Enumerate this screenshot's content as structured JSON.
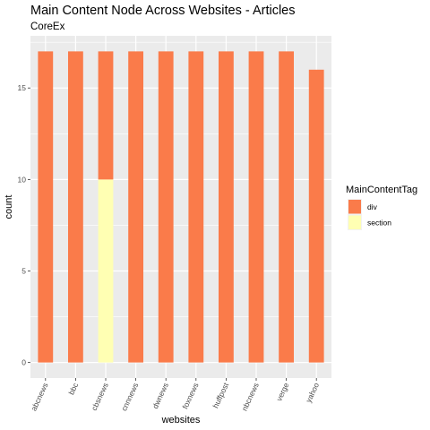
{
  "chart_data": {
    "type": "bar",
    "stacked": true,
    "title": "Main Content Node Across Websites - Articles",
    "subtitle": "CoreEx",
    "xlabel": "websites",
    "ylabel": "count",
    "categories": [
      "abcnews",
      "bbc",
      "cbsnews",
      "cnnnews",
      "dwnews",
      "foxnews",
      "huffpost",
      "nbcnews",
      "verge",
      "yahoo"
    ],
    "series": [
      {
        "name": "div",
        "color": "#FA7B4A",
        "values": [
          17,
          17,
          7,
          17,
          17,
          17,
          17,
          17,
          17,
          16
        ]
      },
      {
        "name": "section",
        "color": "#FFFFB3",
        "values": [
          0,
          0,
          10,
          0,
          0,
          0,
          0,
          0,
          0,
          0
        ]
      }
    ],
    "ylim": [
      -0.85,
      17.85
    ],
    "yticks": [
      0,
      5,
      10,
      15
    ],
    "ytick_labels": [
      "0",
      "5",
      "10",
      "15"
    ],
    "legend": {
      "title": "MainContentTag",
      "placement": "right",
      "entries": [
        "div",
        "section"
      ]
    },
    "grid": true,
    "panel_background": "#EBEBEB"
  }
}
